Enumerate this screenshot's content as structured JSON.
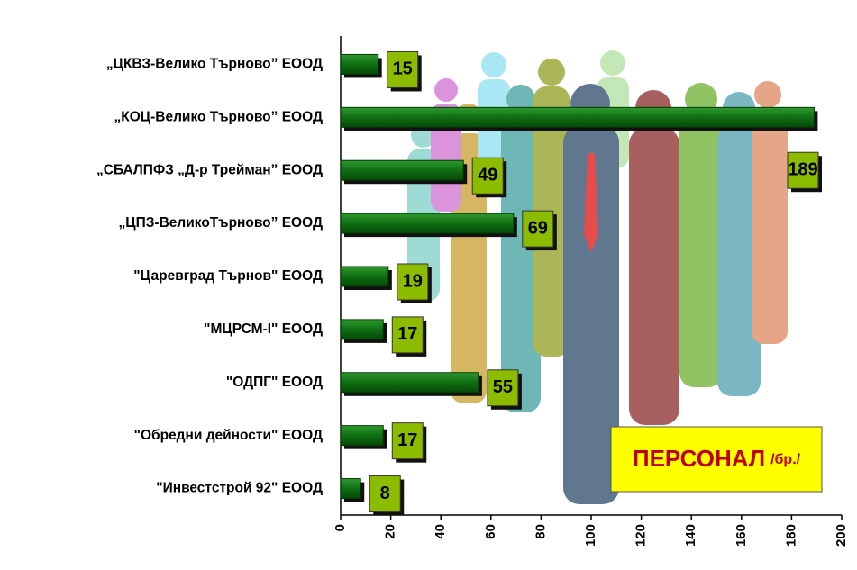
{
  "chart_data": {
    "type": "bar",
    "orientation": "horizontal",
    "title": "ПЕРСОНАЛ",
    "unit": "/бр./",
    "categories": [
      "„ЦКВЗ-Велико Търново” ЕООД",
      "„КОЦ-Велико Търново” ЕООД",
      "„СБАЛПФЗ „Д-р Трейман” ЕООД",
      "„ЦПЗ-ВеликоТърново” ЕООД",
      "\"Царевград Търнов\" ЕООД",
      "\"МЦРСМ-I\" ЕООД",
      "\"ОДПГ\" ЕООД",
      "\"Обредни дейности\" ЕООД",
      "\"Инвестстрой 92\" ЕООД"
    ],
    "values": [
      15,
      189,
      49,
      69,
      19,
      17,
      55,
      17,
      8
    ],
    "color": "#0f6e12",
    "label_color": "#8cbc00",
    "xlim": [
      0,
      200
    ],
    "xticks": [
      0,
      20,
      40,
      60,
      80,
      100,
      120,
      140,
      160,
      180,
      200
    ]
  }
}
